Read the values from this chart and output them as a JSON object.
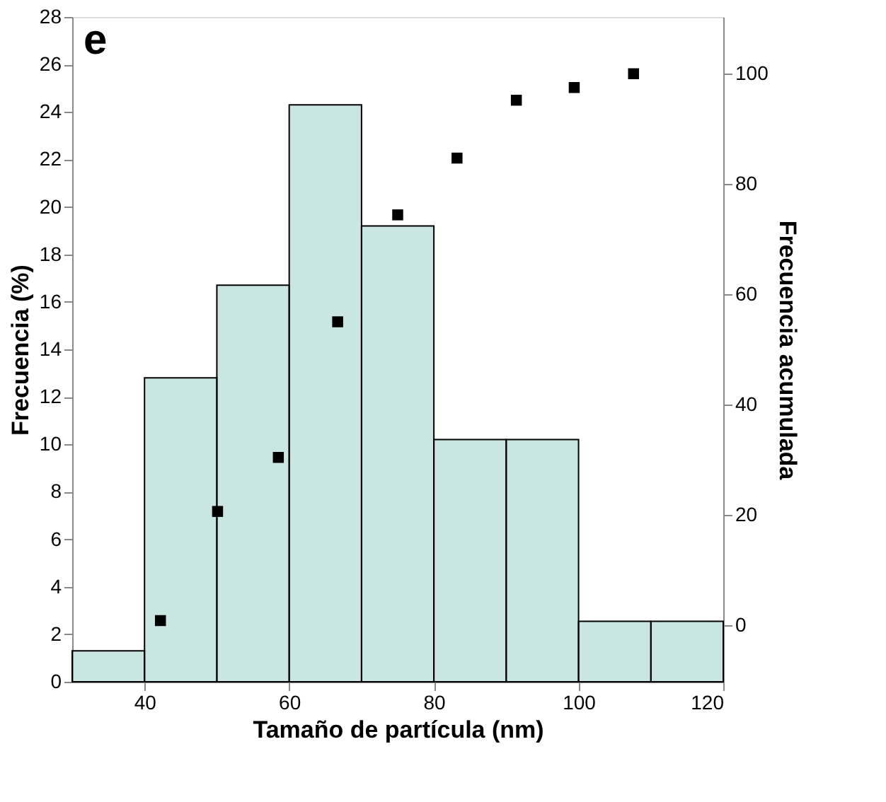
{
  "chart_data": {
    "type": "histogram",
    "xlabel": "Tamaño de partícula (nm)",
    "ylabel": "Frecuencia (%)",
    "y2label": "Frecuencia acumulada",
    "annotations": [
      "e"
    ],
    "bins": [
      30,
      40,
      50,
      60,
      70,
      80,
      90,
      100,
      110,
      120
    ],
    "values": [
      1.3,
      12.8,
      16.7,
      24.3,
      19.2,
      10.2,
      10.2,
      2.55,
      2.55
    ],
    "color": "#2a9d8f",
    "xlim": [
      30,
      120
    ],
    "xticks": [
      40,
      60,
      80,
      100,
      120
    ],
    "ylim": [
      0,
      28
    ],
    "yticks": [
      0,
      2,
      4,
      6,
      8,
      10,
      12,
      14,
      16,
      18,
      20,
      22,
      24,
      26,
      28
    ],
    "y2lim": [
      -10.3,
      110.3
    ],
    "y2ticks": [
      0,
      20,
      40,
      60,
      80,
      100
    ],
    "grid": false,
    "series": [
      {
        "type": "scatter",
        "axis": "y2",
        "marker": "square",
        "color": "#000000",
        "x": [
          42.2,
          50.1,
          58.5,
          66.7,
          75,
          83.2,
          91.4,
          99.4,
          107.6
        ],
        "values": [
          0.8,
          20.6,
          30.4,
          55,
          74.4,
          84.7,
          95.2,
          97.5,
          100
        ]
      }
    ]
  }
}
